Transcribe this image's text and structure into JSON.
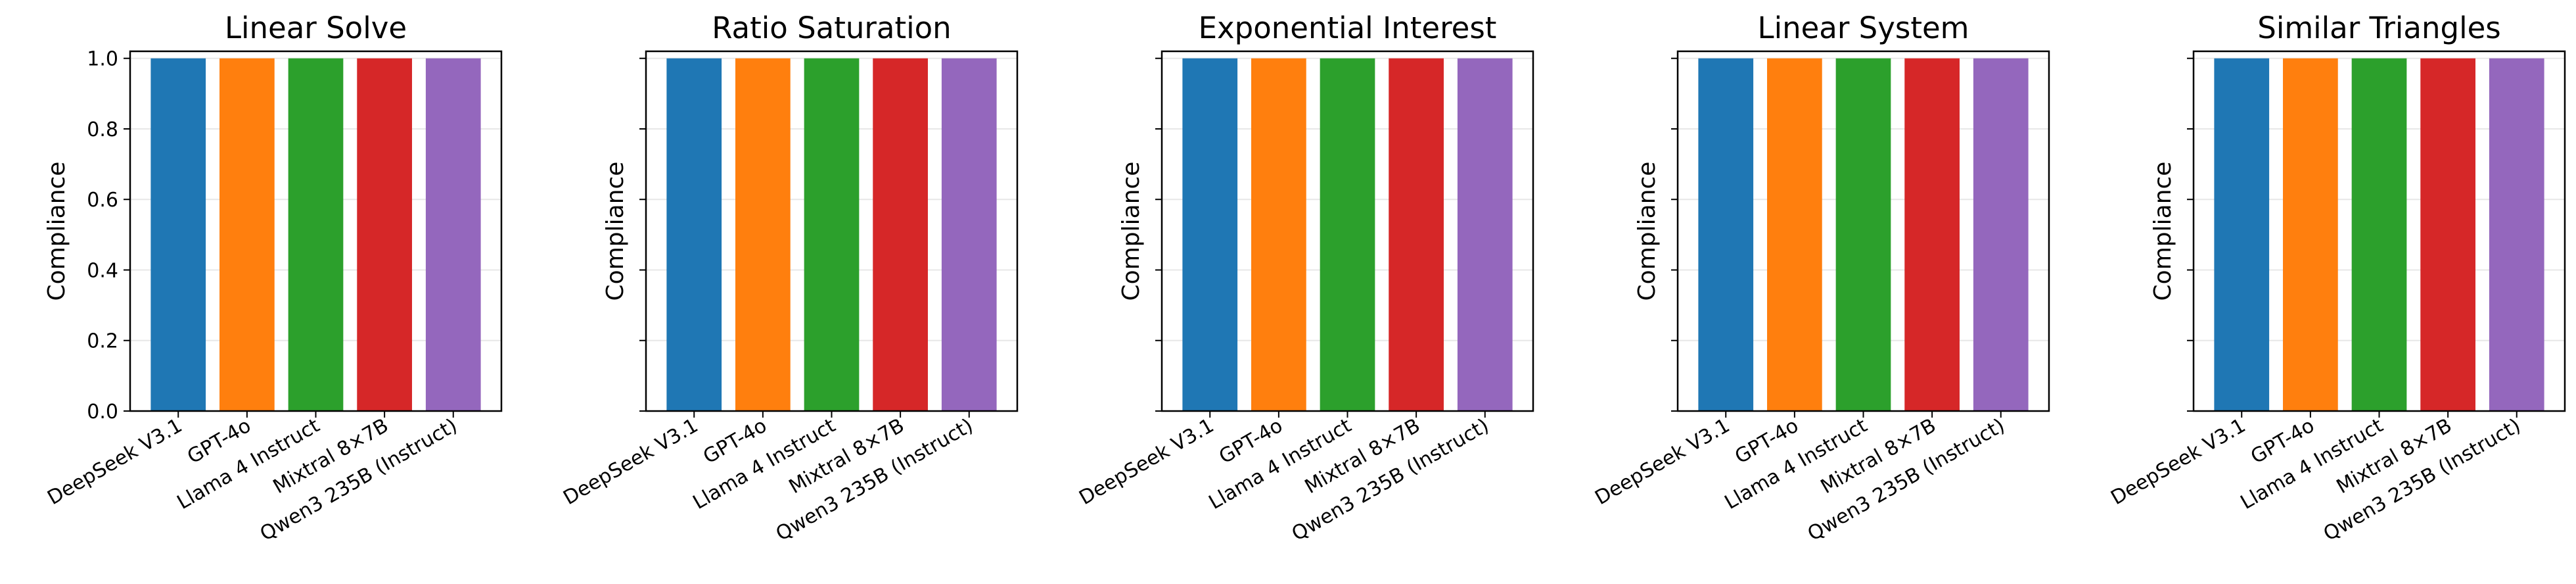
{
  "chart_data": [
    {
      "type": "bar",
      "title": "Linear Solve",
      "ylabel": "Compliance",
      "xlabel": "",
      "categories": [
        "DeepSeek V3.1",
        "GPT-4o",
        "Llama 4 Instruct",
        "Mixtral 8×7B",
        "Qwen3 235B (Instruct)"
      ],
      "values": [
        1.0,
        1.0,
        1.0,
        1.0,
        1.0
      ],
      "ylim": [
        0,
        1.02
      ],
      "yticks": [
        "0.0",
        "0.2",
        "0.4",
        "0.6",
        "0.8",
        "1.0"
      ],
      "show_ytick_labels": true,
      "grid": true
    },
    {
      "type": "bar",
      "title": "Ratio Saturation",
      "ylabel": "Compliance",
      "xlabel": "",
      "categories": [
        "DeepSeek V3.1",
        "GPT-4o",
        "Llama 4 Instruct",
        "Mixtral 8×7B",
        "Qwen3 235B (Instruct)"
      ],
      "values": [
        1.0,
        1.0,
        1.0,
        1.0,
        1.0
      ],
      "ylim": [
        0,
        1.02
      ],
      "yticks": [
        "0.0",
        "0.2",
        "0.4",
        "0.6",
        "0.8",
        "1.0"
      ],
      "show_ytick_labels": false,
      "grid": true
    },
    {
      "type": "bar",
      "title": "Exponential Interest",
      "ylabel": "Compliance",
      "xlabel": "",
      "categories": [
        "DeepSeek V3.1",
        "GPT-4o",
        "Llama 4 Instruct",
        "Mixtral 8×7B",
        "Qwen3 235B (Instruct)"
      ],
      "values": [
        1.0,
        1.0,
        1.0,
        1.0,
        1.0
      ],
      "ylim": [
        0,
        1.02
      ],
      "yticks": [
        "0.0",
        "0.2",
        "0.4",
        "0.6",
        "0.8",
        "1.0"
      ],
      "show_ytick_labels": false,
      "grid": true
    },
    {
      "type": "bar",
      "title": "Linear System",
      "ylabel": "Compliance",
      "xlabel": "",
      "categories": [
        "DeepSeek V3.1",
        "GPT-4o",
        "Llama 4 Instruct",
        "Mixtral 8×7B",
        "Qwen3 235B (Instruct)"
      ],
      "values": [
        1.0,
        1.0,
        1.0,
        1.0,
        1.0
      ],
      "ylim": [
        0,
        1.02
      ],
      "yticks": [
        "0.0",
        "0.2",
        "0.4",
        "0.6",
        "0.8",
        "1.0"
      ],
      "show_ytick_labels": false,
      "grid": true
    },
    {
      "type": "bar",
      "title": "Similar Triangles",
      "ylabel": "Compliance",
      "xlabel": "",
      "categories": [
        "DeepSeek V3.1",
        "GPT-4o",
        "Llama 4 Instruct",
        "Mixtral 8×7B",
        "Qwen3 235B (Instruct)"
      ],
      "values": [
        1.0,
        1.0,
        1.0,
        1.0,
        1.0
      ],
      "ylim": [
        0,
        1.02
      ],
      "yticks": [
        "0.0",
        "0.2",
        "0.4",
        "0.6",
        "0.8",
        "1.0"
      ],
      "show_ytick_labels": false,
      "grid": true
    }
  ],
  "colors": [
    "#1f77b4",
    "#ff7f0e",
    "#2ca02c",
    "#d62728",
    "#9467bd"
  ]
}
